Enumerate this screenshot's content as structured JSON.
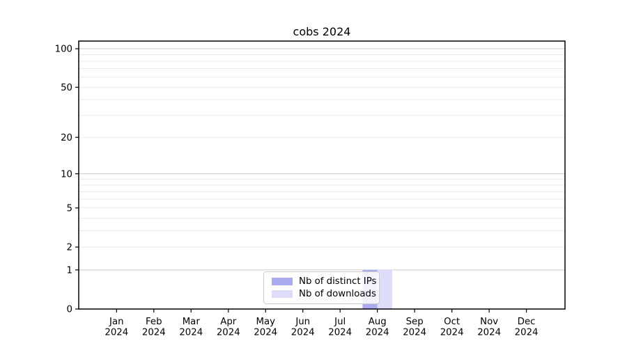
{
  "chart_data": {
    "type": "bar",
    "title": "cobs 2024",
    "x_months": [
      "Jan",
      "Feb",
      "Mar",
      "Apr",
      "May",
      "Jun",
      "Jul",
      "Aug",
      "Sep",
      "Oct",
      "Nov",
      "Dec"
    ],
    "x_year": "2024",
    "y_axis": {
      "scale": "log1p",
      "lim": [
        0,
        100
      ],
      "tick_labels": [
        0,
        1,
        2,
        5,
        10,
        20,
        50,
        100
      ],
      "major_gridlines": [
        1,
        10,
        100
      ],
      "minor_gridlines": [
        2,
        3,
        4,
        5,
        6,
        7,
        8,
        9,
        20,
        30,
        40,
        50,
        60,
        70,
        80,
        90
      ]
    },
    "grid": true,
    "legend_position": "bottom-center",
    "series": [
      {
        "name": "Nb of distinct IPs",
        "color": "#aaaaee",
        "values": [
          0,
          0,
          0,
          0,
          0,
          0,
          0,
          1,
          0,
          0,
          0,
          0
        ]
      },
      {
        "name": "Nb of downloads",
        "color": "#ddddf9",
        "values": [
          0,
          0,
          0,
          0,
          0,
          0,
          0,
          1,
          0,
          0,
          0,
          0
        ]
      }
    ]
  },
  "colors": {
    "frame": "#000000",
    "grid_major": "#c9c9c9",
    "grid_minor": "#e9e9e9",
    "tick": "#000000",
    "text": "#000000",
    "legend_border": "#cccccc"
  }
}
